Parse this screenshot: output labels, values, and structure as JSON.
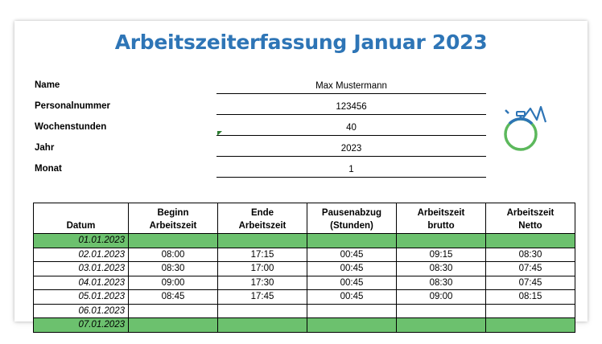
{
  "title": "Arbeitszeiterfassung Januar 2023",
  "info": [
    {
      "label": "Name",
      "value": "Max Mustermann"
    },
    {
      "label": "Personalnummer",
      "value": "123456"
    },
    {
      "label": "Wochenstunden",
      "value": "40"
    },
    {
      "label": "Jahr",
      "value": "2023"
    },
    {
      "label": "Monat",
      "value": "1"
    }
  ],
  "logo_icon": "stopwatch-icon",
  "colors": {
    "title": "#2e75b6",
    "weekend_row": "#6cc16e",
    "logo_green": "#5cb85c",
    "logo_blue": "#2e75b6"
  },
  "table": {
    "headers": [
      [
        "",
        "Datum"
      ],
      [
        "Beginn",
        "Arbeitszeit"
      ],
      [
        "Ende",
        "Arbeitszeit"
      ],
      [
        "Pausenabzug",
        "(Stunden)"
      ],
      [
        "Arbeitszeit",
        "brutto"
      ],
      [
        "Arbeitszeit",
        "Netto"
      ]
    ],
    "rows": [
      {
        "weekend": true,
        "cells": [
          "01.01.2023",
          "",
          "",
          "",
          "",
          ""
        ]
      },
      {
        "weekend": false,
        "cells": [
          "02.01.2023",
          "08:00",
          "17:15",
          "00:45",
          "09:15",
          "08:30"
        ]
      },
      {
        "weekend": false,
        "cells": [
          "03.01.2023",
          "08:30",
          "17:00",
          "00:45",
          "08:30",
          "07:45"
        ]
      },
      {
        "weekend": false,
        "cells": [
          "04.01.2023",
          "09:00",
          "17:30",
          "00:45",
          "08:30",
          "07:45"
        ]
      },
      {
        "weekend": false,
        "cells": [
          "05.01.2023",
          "08:45",
          "17:45",
          "00:45",
          "09:00",
          "08:15"
        ]
      },
      {
        "weekend": false,
        "cells": [
          "06.01.2023",
          "",
          "",
          "",
          "",
          ""
        ]
      },
      {
        "weekend": true,
        "cells": [
          "07.01.2023",
          "",
          "",
          "",
          "",
          ""
        ]
      }
    ]
  }
}
